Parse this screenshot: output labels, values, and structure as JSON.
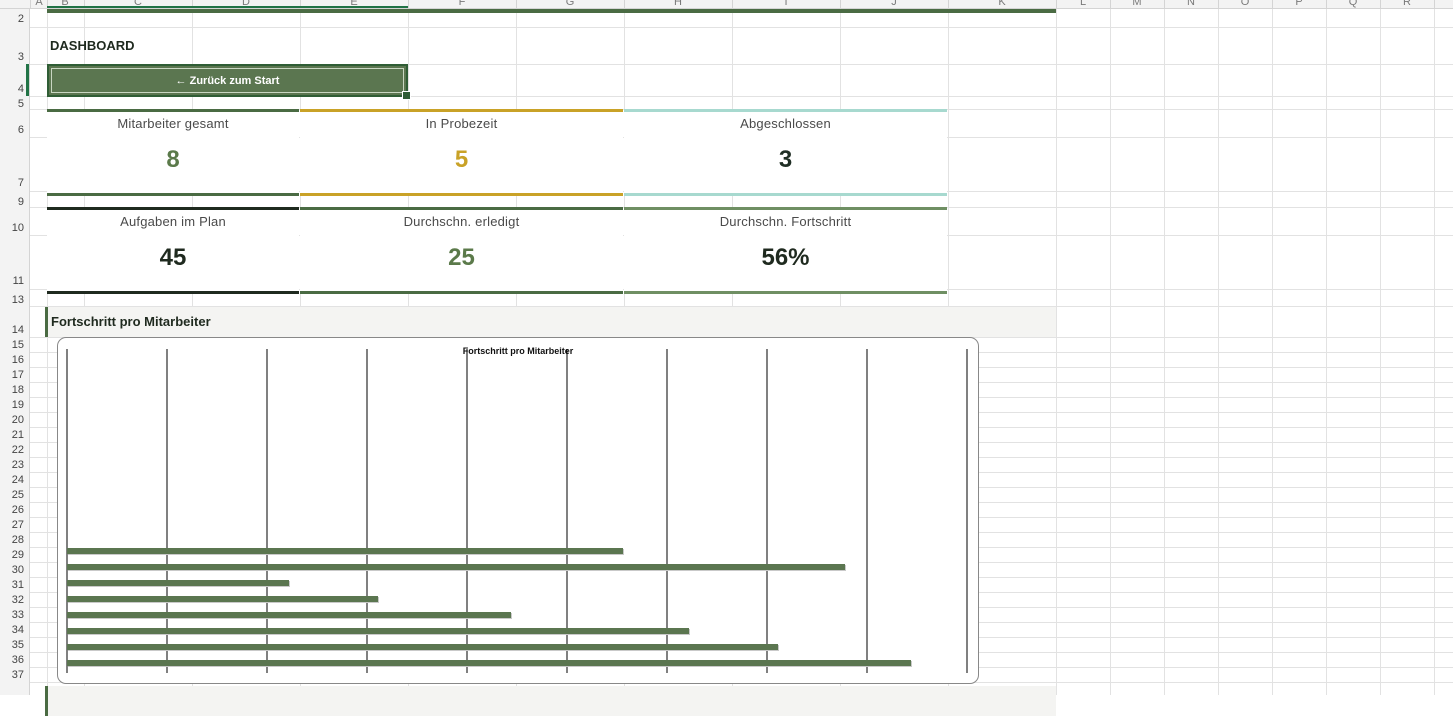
{
  "columns": [
    "A",
    "B",
    "C",
    "D",
    "E",
    "F",
    "G",
    "H",
    "I",
    "J",
    "K",
    "L",
    "M",
    "N",
    "O",
    "P",
    "Q",
    "R"
  ],
  "rows": [
    "2",
    "3",
    "4",
    "5",
    "6",
    "7",
    "9",
    "10",
    "11",
    "13",
    "14",
    "15",
    "16",
    "17",
    "18",
    "19",
    "20",
    "21",
    "22",
    "23",
    "24",
    "25",
    "26",
    "27",
    "28",
    "29",
    "30",
    "31",
    "32",
    "33",
    "34",
    "35",
    "36",
    "37"
  ],
  "dashboard": {
    "title": "DASHBOARD",
    "back_button": "← Zurück zum Start"
  },
  "kpis_row1": [
    {
      "label": "Mitarbeiter gesamt",
      "value": "8",
      "color": "#5b7a4a",
      "accent": "#4a6b43"
    },
    {
      "label": "In Probezeit",
      "value": "5",
      "color": "#c9a227",
      "accent": "#c9a227"
    },
    {
      "label": "Abgeschlossen",
      "value": "3",
      "color": "#1f2e24",
      "accent": "#a7d9cf"
    }
  ],
  "kpis_row2": [
    {
      "label": "Aufgaben im Plan",
      "value": "45",
      "color": "#1f2a1f",
      "accent": "#1f2a1f"
    },
    {
      "label": "Durchschn. erledigt",
      "value": "25",
      "color": "#5b7a4a",
      "accent": "#4a6b43"
    },
    {
      "label": "Durchschn. Fortschritt",
      "value": "56%",
      "color": "#1f2a1f",
      "accent": "#6f8f63"
    }
  ],
  "section": {
    "title": "Fortschritt pro Mitarbeiter"
  },
  "chart_data": {
    "type": "bar",
    "orientation": "horizontal",
    "title": "Fortschritt pro Mitarbeiter",
    "values": [
      0.556,
      0.778,
      0.222,
      0.311,
      0.444,
      0.622,
      0.711,
      0.844
    ],
    "xlim": [
      0,
      0.9
    ],
    "gridlines": 9,
    "grid": true,
    "bar_color": "#5b7650"
  }
}
